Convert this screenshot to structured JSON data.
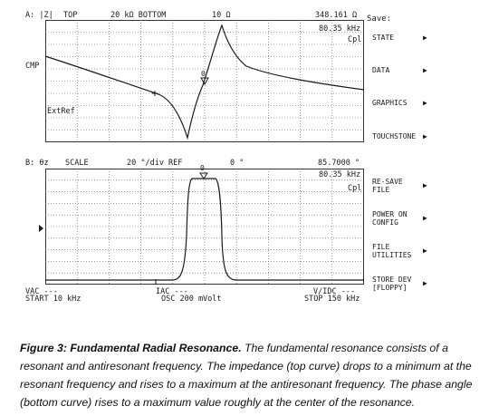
{
  "top_panel": {
    "channel": "A: |Z|",
    "top_label": "TOP",
    "scale_left": "20 kΩ BOTTOM",
    "scale_mid": "10 Ω",
    "readout_value": "348.161 Ω",
    "readout_freq": "80.35 kHz",
    "cpl": "Cpl",
    "cmp_label": "CMP",
    "extref_label": "ExtRef",
    "marker_number": "0"
  },
  "bottom_panel": {
    "channel": "B: θz",
    "scale_label": "SCALE",
    "scale_value": "20 °/div REF",
    "ref_value": "0 °",
    "readout_value": "85.7000 °",
    "readout_freq": "80.35 kHz",
    "cpl": "Cpl",
    "marker_number": "0"
  },
  "footer": {
    "vac": "VAC ---",
    "start": "START 10 kHz",
    "iac": "IAC ---",
    "osc": "OSC 200 mVolt",
    "vidc": "V/IDC ---",
    "stop": "STOP 150 kHz"
  },
  "softkeys": {
    "title": "Save:",
    "items": [
      {
        "label": "STATE"
      },
      {
        "label": "DATA"
      },
      {
        "label": "GRAPHICS"
      },
      {
        "label": "TOUCHSTONE"
      },
      {
        "label": "RE-SAVE\nFILE"
      },
      {
        "label": "POWER ON\nCONFIG"
      },
      {
        "label": "FILE\nUTILITIES"
      },
      {
        "label": "STORE DEV\n[FLOPPY]"
      }
    ]
  },
  "caption": {
    "title": "Figure 3:  Fundamental Radial Resonance.",
    "body": "  The fundamental resonance consists of a resonant and antiresonant frequency. The impedance (top curve) drops to a minimum at the resonant frequency and rises to a maximum at the antiresonant frequency.  The phase angle (bottom curve) rises to a maximum value roughly at the center of the resonance."
  },
  "colors": {
    "trace": "#1a1a1a",
    "grid_dots": "#555555",
    "background": "#ffffff"
  }
}
